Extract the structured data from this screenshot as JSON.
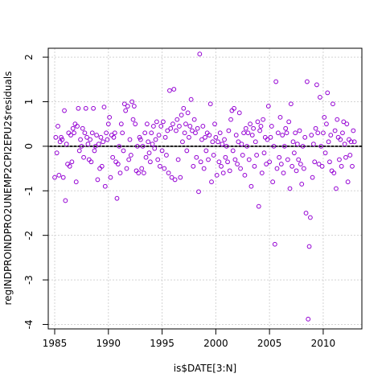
{
  "chart_data": {
    "type": "scatter",
    "xlabel": "is$DATE[3:N]",
    "ylabel": "regINDPROINDPRO2UNEMP2CPI2EPU2$residuals",
    "xlim": [
      1984.4,
      2013.6
    ],
    "ylim": [
      -4.1,
      2.2
    ],
    "x_ticks": [
      1985,
      1990,
      1995,
      2000,
      2005,
      2010
    ],
    "y_ticks": [
      -4,
      -3,
      -2,
      -1,
      0,
      1,
      2
    ],
    "grid": true,
    "point_color": "#9400d3",
    "ref_line_y": 0,
    "points": [
      [
        1985.0,
        -0.7
      ],
      [
        1985.1,
        0.2
      ],
      [
        1985.2,
        -0.15
      ],
      [
        1985.3,
        0.45
      ],
      [
        1985.4,
        -0.65
      ],
      [
        1985.5,
        0.1
      ],
      [
        1985.6,
        0.2
      ],
      [
        1985.7,
        0.15
      ],
      [
        1985.8,
        -0.7
      ],
      [
        1985.9,
        0.8
      ],
      [
        1986.0,
        -1.22
      ],
      [
        1986.1,
        0.05
      ],
      [
        1986.2,
        -0.4
      ],
      [
        1986.3,
        0.3
      ],
      [
        1986.4,
        -0.45
      ],
      [
        1986.5,
        0.25
      ],
      [
        1986.6,
        -0.35
      ],
      [
        1986.7,
        0.4
      ],
      [
        1986.8,
        0.3
      ],
      [
        1986.9,
        0.5
      ],
      [
        1987.0,
        -0.8
      ],
      [
        1987.1,
        0.45
      ],
      [
        1987.2,
        0.85
      ],
      [
        1987.3,
        -0.1
      ],
      [
        1987.4,
        0.15
      ],
      [
        1987.5,
        0.0
      ],
      [
        1987.6,
        0.4
      ],
      [
        1987.7,
        -0.25
      ],
      [
        1987.8,
        0.3
      ],
      [
        1987.9,
        0.85
      ],
      [
        1988.0,
        0.2
      ],
      [
        1988.1,
        0.05
      ],
      [
        1988.2,
        -0.3
      ],
      [
        1988.3,
        0.15
      ],
      [
        1988.4,
        -0.35
      ],
      [
        1988.5,
        0.3
      ],
      [
        1988.6,
        0.85
      ],
      [
        1988.7,
        -0.1
      ],
      [
        1988.8,
        0.0
      ],
      [
        1988.9,
        0.25
      ],
      [
        1989.0,
        -0.75
      ],
      [
        1989.1,
        0.05
      ],
      [
        1989.2,
        -0.5
      ],
      [
        1989.3,
        0.2
      ],
      [
        1989.4,
        -0.45
      ],
      [
        1989.5,
        0.1
      ],
      [
        1989.6,
        0.88
      ],
      [
        1989.7,
        -0.9
      ],
      [
        1989.8,
        0.3
      ],
      [
        1989.9,
        0.15
      ],
      [
        1990.0,
        0.5
      ],
      [
        1990.1,
        0.65
      ],
      [
        1990.2,
        -0.7
      ],
      [
        1990.3,
        0.25
      ],
      [
        1990.4,
        -0.25
      ],
      [
        1990.5,
        0.2
      ],
      [
        1990.6,
        0.3
      ],
      [
        1990.7,
        -0.35
      ],
      [
        1990.8,
        -1.17
      ],
      [
        1990.9,
        -0.4
      ],
      [
        1991.0,
        0.0
      ],
      [
        1991.1,
        -0.6
      ],
      [
        1991.2,
        0.5
      ],
      [
        1991.3,
        0.3
      ],
      [
        1991.4,
        -0.1
      ],
      [
        1991.5,
        0.95
      ],
      [
        1991.6,
        0.8
      ],
      [
        1991.7,
        -0.5
      ],
      [
        1991.8,
        0.9
      ],
      [
        1991.9,
        -0.3
      ],
      [
        1992.0,
        0.15
      ],
      [
        1992.1,
        -0.2
      ],
      [
        1992.2,
        1.0
      ],
      [
        1992.3,
        0.6
      ],
      [
        1992.4,
        0.9
      ],
      [
        1992.5,
        0.5
      ],
      [
        1992.6,
        -0.55
      ],
      [
        1992.7,
        0.0
      ],
      [
        1992.8,
        -0.6
      ],
      [
        1992.9,
        0.2
      ],
      [
        1993.0,
        0.15
      ],
      [
        1993.1,
        -0.5
      ],
      [
        1993.2,
        0.0
      ],
      [
        1993.3,
        -0.6
      ],
      [
        1993.4,
        0.3
      ],
      [
        1993.5,
        -0.25
      ],
      [
        1993.6,
        0.5
      ],
      [
        1993.7,
        0.1
      ],
      [
        1993.8,
        -0.15
      ],
      [
        1993.9,
        -0.35
      ],
      [
        1994.0,
        0.3
      ],
      [
        1994.1,
        0.05
      ],
      [
        1994.2,
        0.45
      ],
      [
        1994.3,
        -0.05
      ],
      [
        1994.4,
        0.15
      ],
      [
        1994.5,
        0.55
      ],
      [
        1994.6,
        -0.3
      ],
      [
        1994.7,
        0.25
      ],
      [
        1994.8,
        -0.45
      ],
      [
        1994.9,
        0.45
      ],
      [
        1995.0,
        -0.1
      ],
      [
        1995.1,
        0.55
      ],
      [
        1995.2,
        -0.5
      ],
      [
        1995.3,
        0.2
      ],
      [
        1995.4,
        -0.2
      ],
      [
        1995.5,
        0.35
      ],
      [
        1995.6,
        -0.6
      ],
      [
        1995.7,
        1.25
      ],
      [
        1995.8,
        0.4
      ],
      [
        1995.9,
        -0.7
      ],
      [
        1996.0,
        0.5
      ],
      [
        1996.1,
        1.28
      ],
      [
        1996.2,
        -0.75
      ],
      [
        1996.3,
        0.35
      ],
      [
        1996.4,
        0.6
      ],
      [
        1996.5,
        -0.3
      ],
      [
        1996.6,
        0.45
      ],
      [
        1996.7,
        -0.7
      ],
      [
        1996.8,
        0.7
      ],
      [
        1996.9,
        0.1
      ],
      [
        1997.0,
        0.85
      ],
      [
        1997.1,
        0.3
      ],
      [
        1997.2,
        0.5
      ],
      [
        1997.3,
        -0.1
      ],
      [
        1997.4,
        0.75
      ],
      [
        1997.5,
        0.2
      ],
      [
        1997.6,
        0.45
      ],
      [
        1997.7,
        1.05
      ],
      [
        1997.8,
        0.35
      ],
      [
        1997.9,
        -0.45
      ],
      [
        1998.0,
        0.6
      ],
      [
        1998.1,
        0.3
      ],
      [
        1998.2,
        -0.25
      ],
      [
        1998.3,
        0.4
      ],
      [
        1998.4,
        -1.02
      ],
      [
        1998.5,
        2.07
      ],
      [
        1998.6,
        -0.35
      ],
      [
        1998.7,
        0.15
      ],
      [
        1998.8,
        0.45
      ],
      [
        1998.9,
        -0.5
      ],
      [
        1999.0,
        0.2
      ],
      [
        1999.1,
        -0.1
      ],
      [
        1999.2,
        0.3
      ],
      [
        1999.3,
        -0.3
      ],
      [
        1999.4,
        0.25
      ],
      [
        1999.5,
        0.95
      ],
      [
        1999.6,
        -0.8
      ],
      [
        1999.7,
        0.1
      ],
      [
        1999.8,
        -0.2
      ],
      [
        1999.9,
        0.5
      ],
      [
        2000.0,
        0.2
      ],
      [
        2000.1,
        -0.65
      ],
      [
        2000.2,
        0.1
      ],
      [
        2000.3,
        -0.35
      ],
      [
        2000.4,
        0.3
      ],
      [
        2000.5,
        -0.45
      ],
      [
        2000.6,
        0.05
      ],
      [
        2000.7,
        -0.6
      ],
      [
        2000.8,
        0.15
      ],
      [
        2000.9,
        -0.25
      ],
      [
        2001.0,
        0.0
      ],
      [
        2001.1,
        -0.35
      ],
      [
        2001.2,
        0.35
      ],
      [
        2001.3,
        -0.55
      ],
      [
        2001.4,
        0.6
      ],
      [
        2001.5,
        0.8
      ],
      [
        2001.6,
        -0.1
      ],
      [
        2001.7,
        0.85
      ],
      [
        2001.8,
        -0.3
      ],
      [
        2001.9,
        0.25
      ],
      [
        2002.0,
        -0.4
      ],
      [
        2002.1,
        0.1
      ],
      [
        2002.2,
        0.75
      ],
      [
        2002.3,
        -0.5
      ],
      [
        2002.4,
        0.05
      ],
      [
        2002.5,
        -0.2
      ],
      [
        2002.6,
        0.3
      ],
      [
        2002.7,
        -0.65
      ],
      [
        2002.8,
        0.4
      ],
      [
        2002.9,
        0.0
      ],
      [
        2003.0,
        0.3
      ],
      [
        2003.1,
        -0.3
      ],
      [
        2003.2,
        0.5
      ],
      [
        2003.3,
        -0.9
      ],
      [
        2003.4,
        0.25
      ],
      [
        2003.5,
        0.4
      ],
      [
        2003.6,
        -0.45
      ],
      [
        2003.7,
        0.1
      ],
      [
        2003.8,
        -0.2
      ],
      [
        2003.9,
        0.55
      ],
      [
        2004.0,
        -1.35
      ],
      [
        2004.1,
        0.35
      ],
      [
        2004.2,
        0.45
      ],
      [
        2004.3,
        -0.6
      ],
      [
        2004.4,
        0.6
      ],
      [
        2004.5,
        -0.15
      ],
      [
        2004.6,
        0.2
      ],
      [
        2004.7,
        -0.4
      ],
      [
        2004.8,
        0.15
      ],
      [
        2004.9,
        0.9
      ],
      [
        2005.0,
        -0.35
      ],
      [
        2005.1,
        0.2
      ],
      [
        2005.2,
        0.45
      ],
      [
        2005.3,
        -0.8
      ],
      [
        2005.4,
        0.0
      ],
      [
        2005.5,
        -2.2
      ],
      [
        2005.6,
        1.45
      ],
      [
        2005.7,
        -0.5
      ],
      [
        2005.8,
        0.3
      ],
      [
        2005.9,
        -0.25
      ],
      [
        2006.0,
        0.65
      ],
      [
        2006.1,
        -0.4
      ],
      [
        2006.2,
        0.25
      ],
      [
        2006.3,
        -0.6
      ],
      [
        2006.4,
        0.0
      ],
      [
        2006.5,
        0.4
      ],
      [
        2006.6,
        0.3
      ],
      [
        2006.7,
        -0.3
      ],
      [
        2006.8,
        0.55
      ],
      [
        2006.9,
        -0.95
      ],
      [
        2007.0,
        0.95
      ],
      [
        2007.1,
        -0.45
      ],
      [
        2007.2,
        0.1
      ],
      [
        2007.3,
        -0.15
      ],
      [
        2007.4,
        0.3
      ],
      [
        2007.5,
        -0.55
      ],
      [
        2007.6,
        0.05
      ],
      [
        2007.7,
        -0.3
      ],
      [
        2007.8,
        0.35
      ],
      [
        2007.9,
        -0.4
      ],
      [
        2008.0,
        -0.85
      ],
      [
        2008.1,
        0.0
      ],
      [
        2008.2,
        -0.5
      ],
      [
        2008.3,
        0.2
      ],
      [
        2008.4,
        -1.5
      ],
      [
        2008.5,
        1.45
      ],
      [
        2008.6,
        -3.88
      ],
      [
        2008.7,
        -2.25
      ],
      [
        2008.8,
        -1.6
      ],
      [
        2008.9,
        0.25
      ],
      [
        2009.0,
        -0.7
      ],
      [
        2009.1,
        0.05
      ],
      [
        2009.2,
        -0.35
      ],
      [
        2009.3,
        0.4
      ],
      [
        2009.4,
        1.38
      ],
      [
        2009.5,
        0.3
      ],
      [
        2009.6,
        -0.4
      ],
      [
        2009.7,
        1.1
      ],
      [
        2009.8,
        0.0
      ],
      [
        2009.9,
        -0.45
      ],
      [
        2010.0,
        0.3
      ],
      [
        2010.1,
        0.65
      ],
      [
        2010.2,
        -0.15
      ],
      [
        2010.3,
        0.5
      ],
      [
        2010.4,
        1.2
      ],
      [
        2010.5,
        0.1
      ],
      [
        2010.6,
        -0.35
      ],
      [
        2010.7,
        0.25
      ],
      [
        2010.8,
        -0.55
      ],
      [
        2010.9,
        0.95
      ],
      [
        2011.0,
        -0.6
      ],
      [
        2011.1,
        0.35
      ],
      [
        2011.2,
        -0.95
      ],
      [
        2011.3,
        0.6
      ],
      [
        2011.4,
        0.2
      ],
      [
        2011.5,
        -0.3
      ],
      [
        2011.6,
        0.15
      ],
      [
        2011.7,
        -0.45
      ],
      [
        2011.8,
        0.3
      ],
      [
        2011.9,
        0.55
      ],
      [
        2012.0,
        0.05
      ],
      [
        2012.1,
        -0.25
      ],
      [
        2012.2,
        0.5
      ],
      [
        2012.3,
        -0.8
      ],
      [
        2012.4,
        0.15
      ],
      [
        2012.5,
        -0.2
      ],
      [
        2012.6,
        0.1
      ],
      [
        2012.7,
        -0.45
      ],
      [
        2012.8,
        0.35
      ],
      [
        2012.9,
        0.1
      ]
    ]
  }
}
